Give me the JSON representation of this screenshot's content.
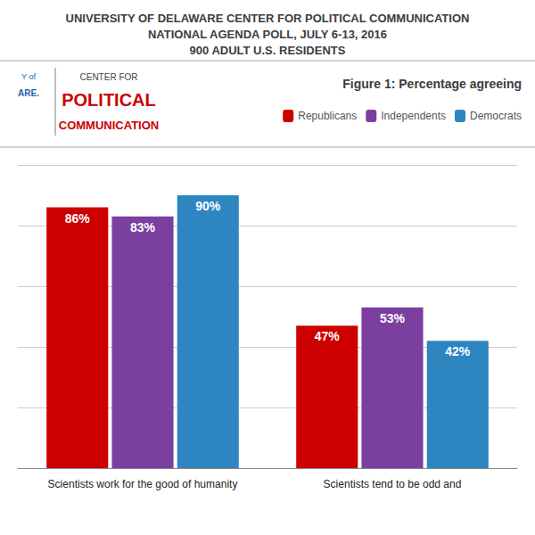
{
  "chart_data": {
    "type": "bar",
    "title": "UNIVERSITY OF DELAWARE CENTER FOR POLITICAL COMMUNICATION\nNATIONAL AGENDA POLL, JULY 6-13, 2016\n900 ADULT U.S. RESIDENTS",
    "subtitle": "Figure 1: Percentage agreeing",
    "annotations": [
      "Y of",
      "ARE.",
      "CENTER FOR",
      "POLITICAL",
      "COMMUNICATION"
    ],
    "categories": [
      "Scientists work for the good of humanity",
      "Scientists tend to be odd and"
    ],
    "series": [
      {
        "name": "Republicans",
        "color": "#CC0000",
        "values": [
          86,
          47
        ],
        "value_labels": [
          "86%",
          "47%"
        ]
      },
      {
        "name": "Independents",
        "color": "#7B3FA0",
        "values": [
          83,
          53
        ],
        "value_labels": [
          "83%",
          "53%"
        ]
      },
      {
        "name": "Democrats",
        "color": "#2E86C1",
        "values": [
          90,
          42
        ],
        "value_labels": [
          "90%",
          "42%"
        ]
      }
    ],
    "ylim": [
      0,
      100
    ],
    "yticks": [
      0,
      20,
      40,
      60,
      80,
      100
    ],
    "grid": true,
    "legend": "upper right",
    "data_labels": true,
    "tick_labels": "x"
  }
}
